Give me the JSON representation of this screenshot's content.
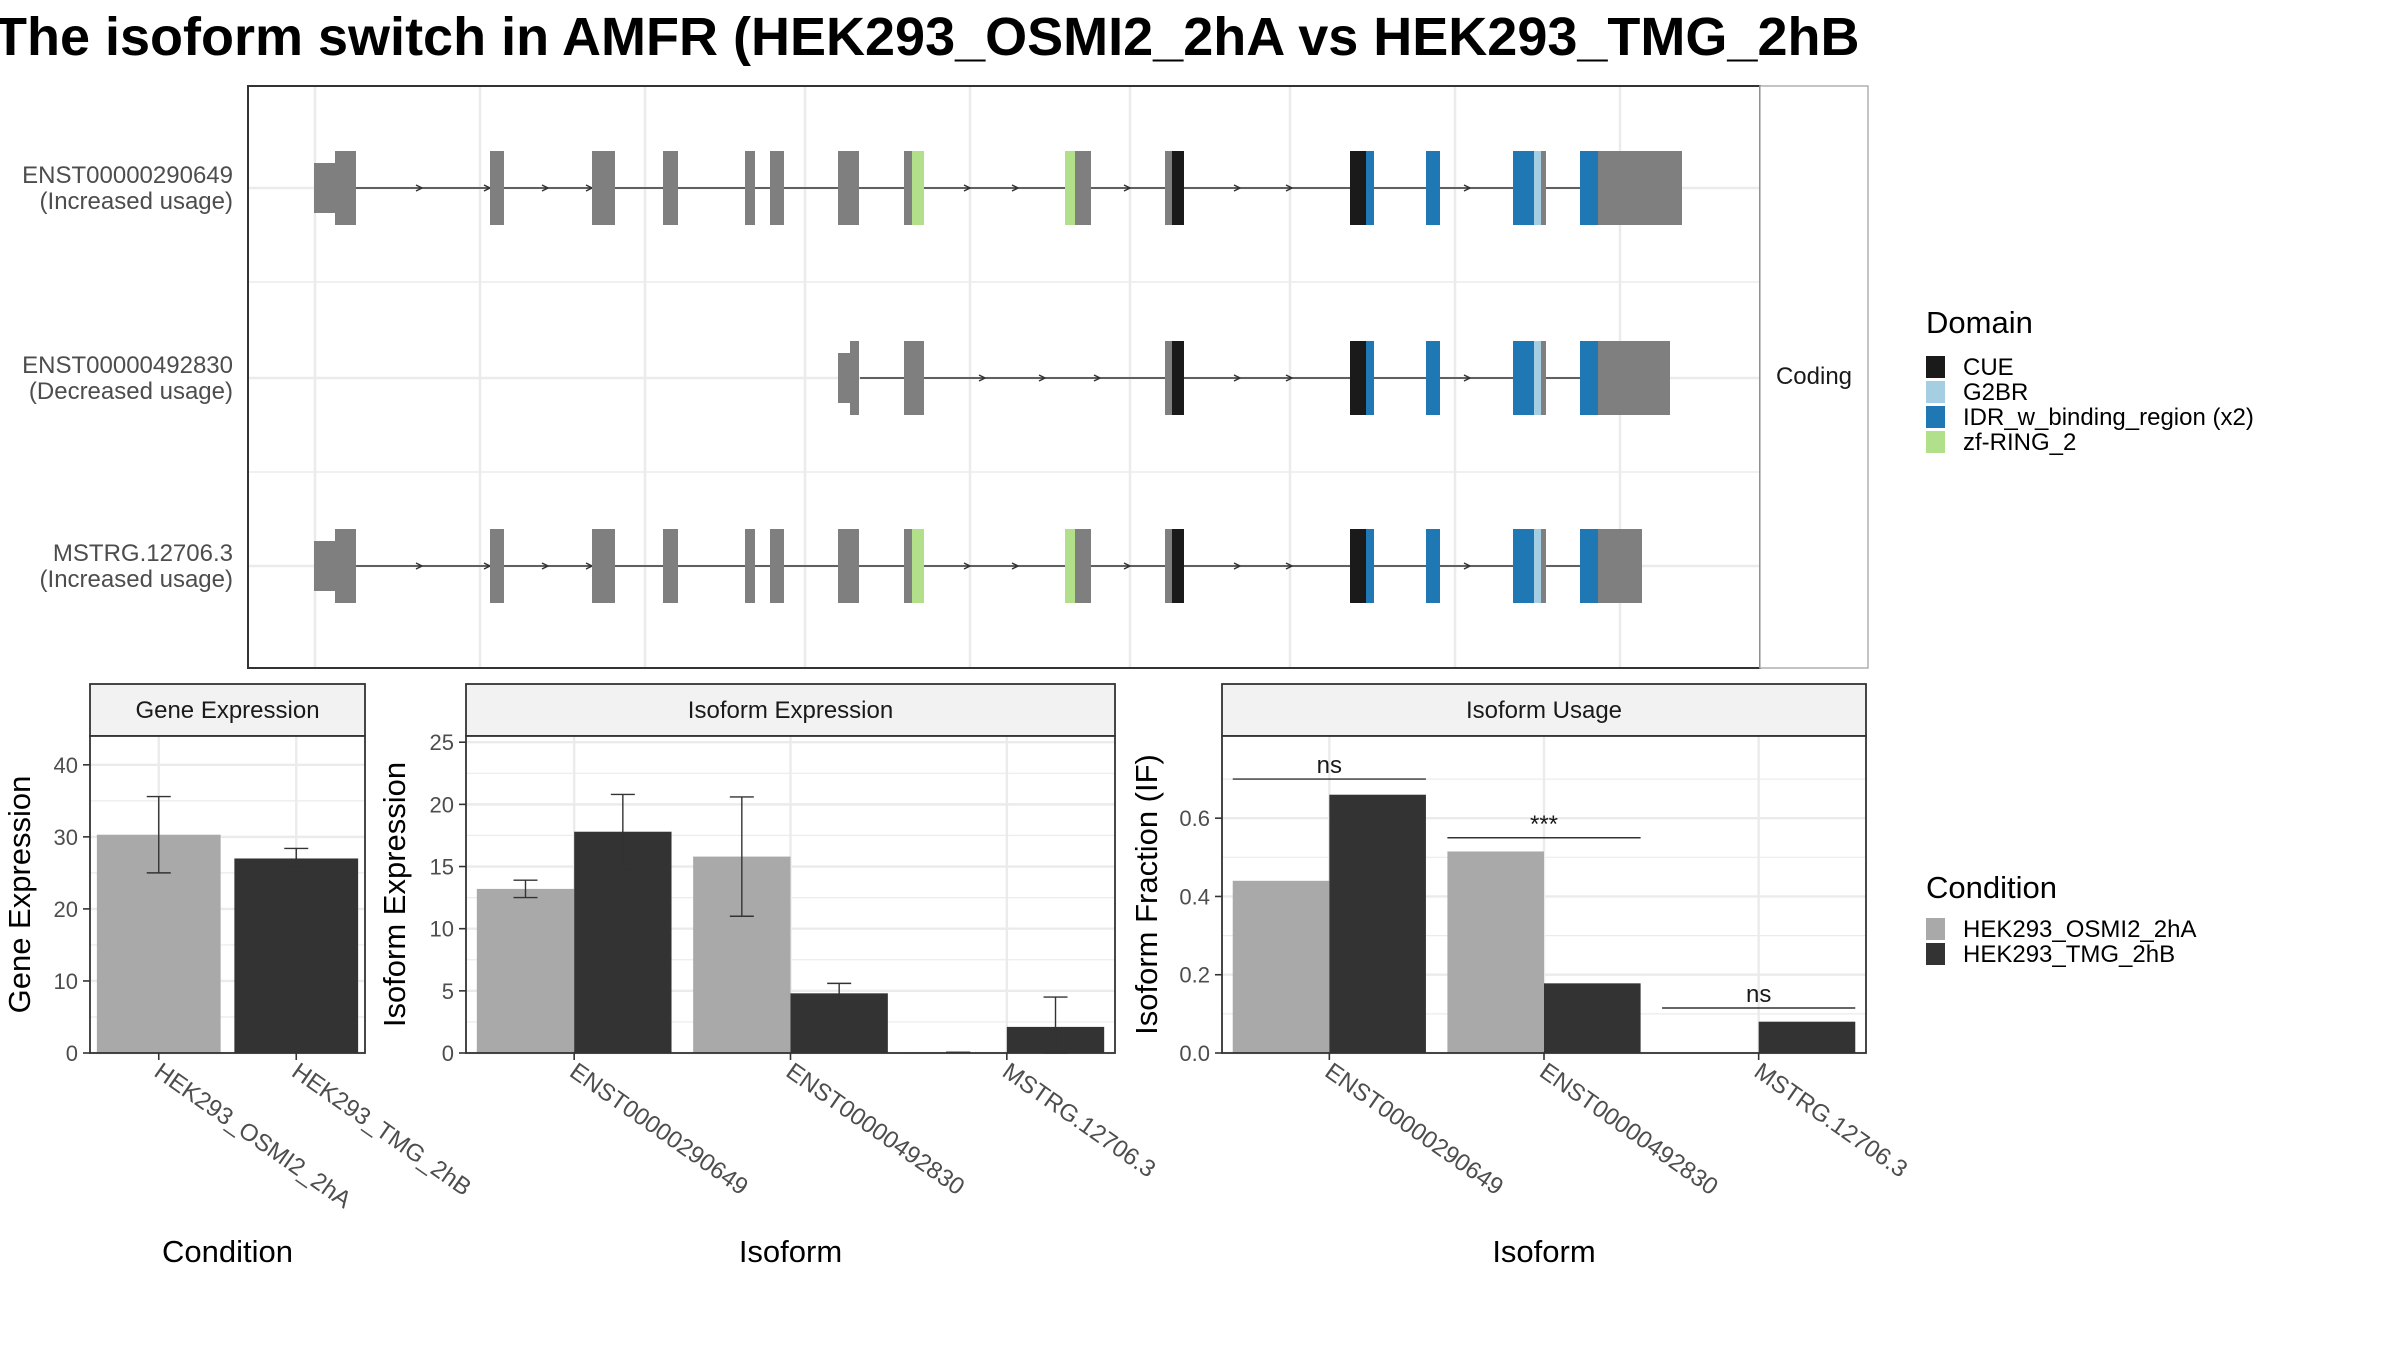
{
  "title": "The isoform switch in AMFR (HEK293_OSMI2_2hA vs HEK293_TMG_2hB",
  "colors": {
    "exon": "#7f7f7f",
    "CUE": "#1a1a1a",
    "G2BR": "#a6cee3",
    "IDR_w_binding_region": "#1f78b4",
    "zf-RING_2": "#b2df8a",
    "cond1": "#a9a9a9",
    "cond2": "#333333",
    "grid": "#ebebeb",
    "strip": "#f2f2f2"
  },
  "structure": {
    "facet_label": "Coding",
    "isoforms": [
      {
        "id": "ENST00000290649",
        "usage": "(Increased usage)"
      },
      {
        "id": "ENST00000492830",
        "usage": "(Decreased usage)"
      },
      {
        "id": "MSTRG.12706.3",
        "usage": "(Increased usage)"
      }
    ]
  },
  "legend_domain": {
    "title": "Domain",
    "items": [
      "CUE",
      "G2BR",
      "IDR_w_binding_region (x2)",
      "zf-RING_2"
    ]
  },
  "legend_condition": {
    "title": "Condition",
    "items": [
      "HEK293_OSMI2_2hA",
      "HEK293_TMG_2hB"
    ]
  },
  "chart_data": [
    {
      "type": "bar",
      "title": "Gene Expression",
      "xlabel": "Condition",
      "ylabel": "Gene Expression",
      "ylim": [
        0,
        44
      ],
      "yticks": [
        0,
        10,
        20,
        30,
        40
      ],
      "categories": [
        "HEK293_OSMI2_2hA",
        "HEK293_TMG_2hB"
      ],
      "values": [
        30.3,
        27.0
      ],
      "errors": [
        [
          25.0,
          35.6
        ],
        [
          25.8,
          28.4
        ]
      ]
    },
    {
      "type": "bar",
      "title": "Isoform Expression",
      "xlabel": "Isoform",
      "ylabel": "Isoform Expression",
      "ylim": [
        0,
        25.5
      ],
      "yticks": [
        0,
        5,
        10,
        15,
        20,
        25
      ],
      "categories": [
        "ENST00000290649",
        "ENST00000492830",
        "MSTRG.12706.3"
      ],
      "series": [
        {
          "name": "HEK293_OSMI2_2hA",
          "values": [
            13.2,
            15.8,
            0.05
          ],
          "errors": [
            [
              12.5,
              13.9
            ],
            [
              11.0,
              20.6
            ],
            [
              0.05,
              0.05
            ]
          ]
        },
        {
          "name": "HEK293_TMG_2hB",
          "values": [
            17.8,
            4.8,
            2.1
          ],
          "errors": [
            [
              14.8,
              20.8
            ],
            [
              4.0,
              5.6
            ],
            [
              0.0,
              4.5
            ]
          ]
        }
      ]
    },
    {
      "type": "bar",
      "title": "Isoform Usage",
      "xlabel": "Isoform",
      "ylabel": "Isoform Fraction (IF)",
      "ylim": [
        0,
        0.81
      ],
      "yticks": [
        0.0,
        0.2,
        0.4,
        0.6
      ],
      "ytick_labels": [
        "0.0",
        "0.2",
        "0.4",
        "0.6"
      ],
      "categories": [
        "ENST00000290649",
        "ENST00000492830",
        "MSTRG.12706.3"
      ],
      "series": [
        {
          "name": "HEK293_OSMI2_2hA",
          "values": [
            0.44,
            0.515,
            0.0
          ]
        },
        {
          "name": "HEK293_TMG_2hB",
          "values": [
            0.66,
            0.178,
            0.08
          ]
        }
      ],
      "significance": [
        {
          "label": "ns",
          "y": 0.7
        },
        {
          "label": "***",
          "y": 0.55
        },
        {
          "label": "ns",
          "y": 0.115
        }
      ]
    }
  ]
}
